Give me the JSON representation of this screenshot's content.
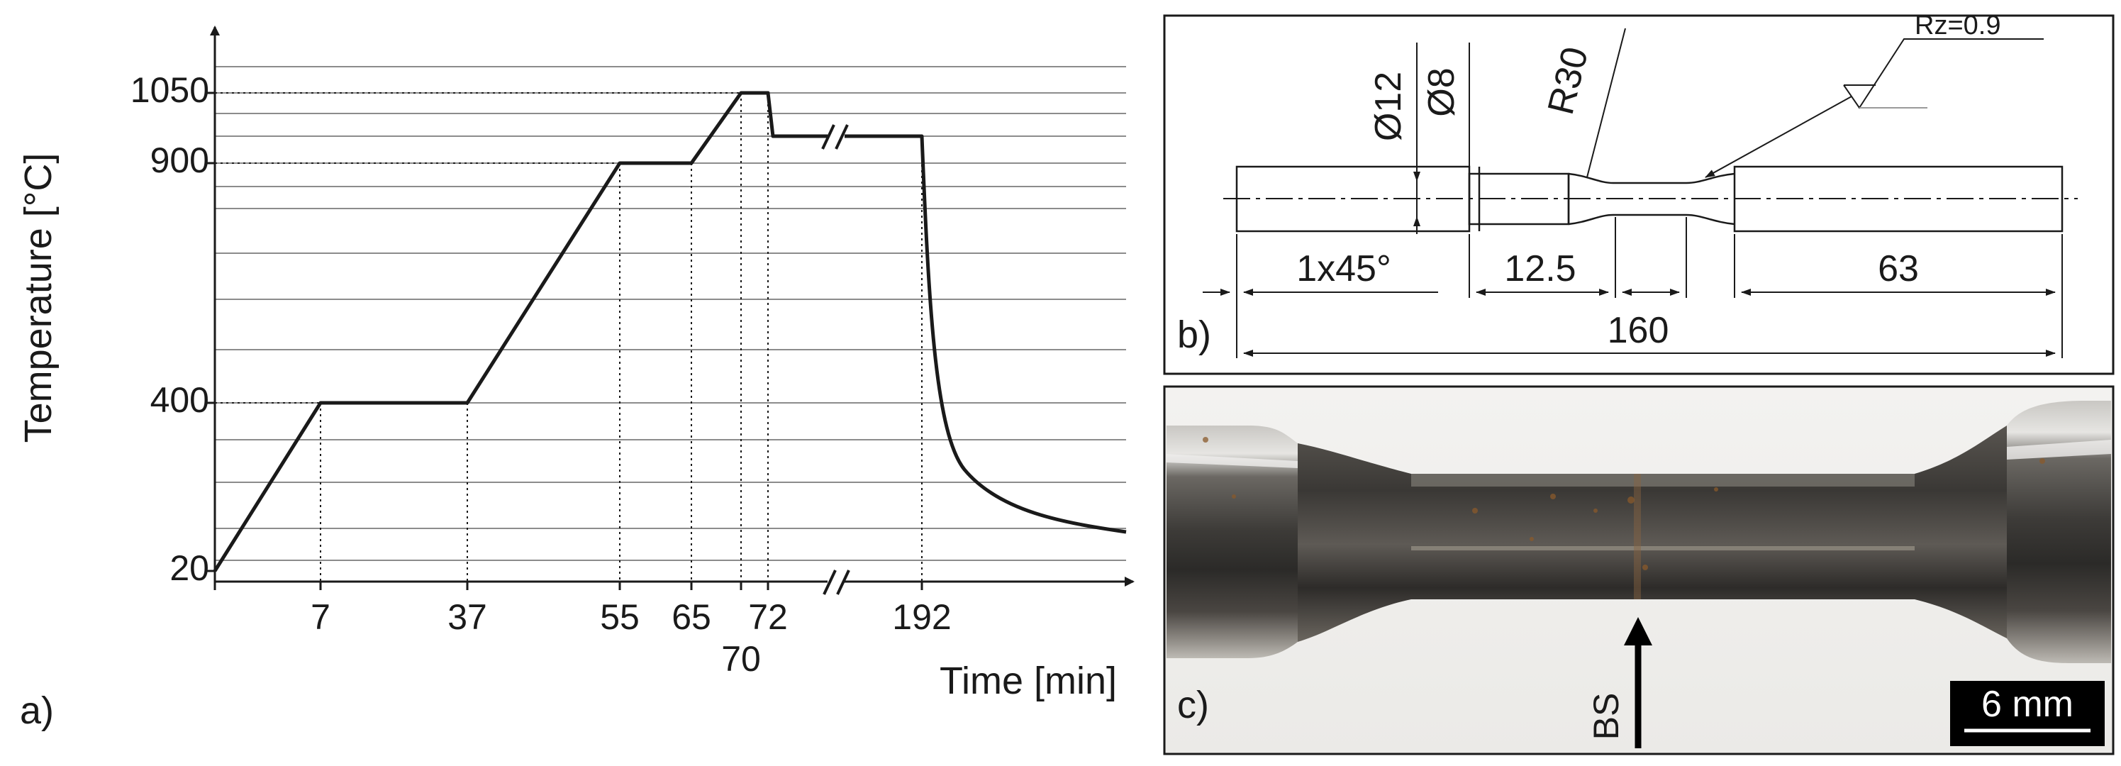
{
  "panels": {
    "a": "a)",
    "b": "b)",
    "c": "c)"
  },
  "chart_data": {
    "type": "line",
    "xlabel": "Time [min]",
    "ylabel": "Temperature [°C]",
    "x_ticks": [
      "7",
      "37",
      "55",
      "65",
      "72",
      "192"
    ],
    "x_tick_below": "70",
    "y_ticks": [
      "20",
      "400",
      "900",
      "1050"
    ],
    "axis_break": "//",
    "grid": "horizontal",
    "points": [
      {
        "t": 0,
        "T": 20
      },
      {
        "t": 7,
        "T": 400
      },
      {
        "t": 37,
        "T": 400
      },
      {
        "t": 55,
        "T": 900
      },
      {
        "t": 65,
        "T": 900
      },
      {
        "t": 70,
        "T": 1050
      },
      {
        "t": 72,
        "T": 1050
      },
      {
        "t": 73,
        "T": 950
      },
      {
        "t": 192,
        "T": 950
      }
    ],
    "cooling_after": 192
  },
  "drawing": {
    "dia12": "Ø12",
    "dia8": "Ø8",
    "radius": "R30",
    "roughness": "Rz=0.9",
    "chamfer": "1x45°",
    "gauge_len": "12.5",
    "grip_len": "63",
    "total_len": "160"
  },
  "photo": {
    "marker": "BS",
    "scale_bar": "6 mm"
  },
  "colors": {
    "line": "#1a1a1a",
    "grid": "#8c8c8c",
    "scalebar_bg": "#000000",
    "scalebar_text": "#ffffff"
  }
}
